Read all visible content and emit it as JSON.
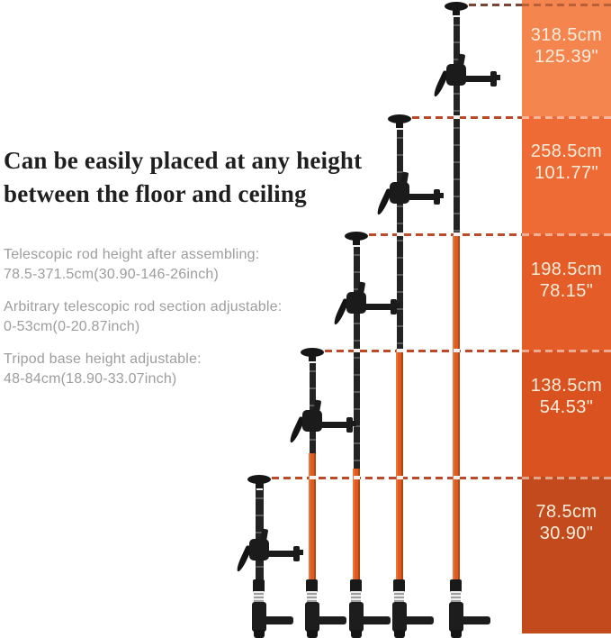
{
  "title": {
    "line1": "Can be easily placed at any height",
    "line2": "between the floor and ceiling",
    "color": "#1f1f1f"
  },
  "specs": {
    "color": "#9d9d9d",
    "items": [
      {
        "label": "Telescopic rod height after assembling:",
        "value": "78.5-371.5cm(30.90-146-26inch)"
      },
      {
        "label": "Arbitrary telescopic rod section adjustable:",
        "value": "0-53cm(0-20.87inch)"
      },
      {
        "label": "Tripod base height adjustable:",
        "value": "48-84cm(18.90-33.07inch)"
      }
    ]
  },
  "height_scale": {
    "text_color": "#f7eedd",
    "blocks": [
      {
        "cm": "318.5cm",
        "inch": "125.39\"",
        "color": "#f5854f"
      },
      {
        "cm": "258.5cm",
        "inch": "101.77\"",
        "color": "#ee6b36"
      },
      {
        "cm": "198.5cm",
        "inch": "78.15\"",
        "color": "#e45c27"
      },
      {
        "cm": "138.5cm",
        "inch": "54.53\"",
        "color": "#da521f"
      },
      {
        "cm": "78.5cm",
        "inch": "30.90\"",
        "color": "#c34a1c"
      }
    ]
  },
  "illustration": {
    "pole_count": 5,
    "description": "Five telescopic laser-level poles with tripod feet shown at increasing extended heights",
    "colors": {
      "pole_black": "#232323",
      "pole_orange": "#e05a1d",
      "dash_line": "#bc4a28",
      "dash_line_dark": "#7d4434"
    }
  }
}
